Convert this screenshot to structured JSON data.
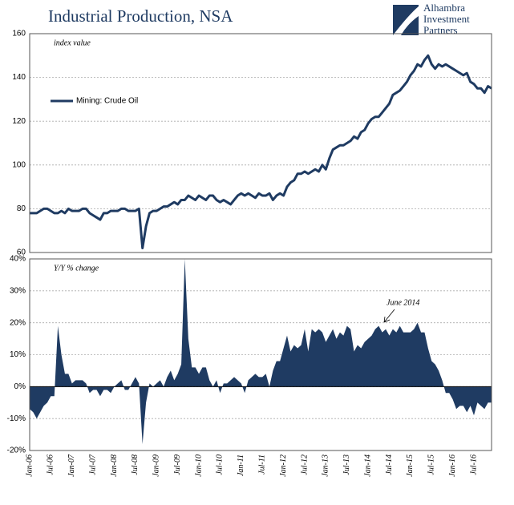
{
  "title": "Industrial Production, NSA",
  "logo": [
    "Alhambra",
    "Investment",
    "Partners"
  ],
  "chart_data": [
    {
      "type": "line",
      "axis_label": "index value",
      "ylim": [
        60,
        160
      ],
      "yticks": [
        60,
        80,
        100,
        120,
        140,
        160
      ],
      "grid": true,
      "legend": "upper left",
      "series": [
        {
          "name": "Mining: Crude Oil",
          "color": "#1f3b62",
          "values": [
            78,
            78,
            78,
            79,
            80,
            80,
            79,
            78,
            78,
            79,
            78,
            80,
            79,
            79,
            79,
            80,
            80,
            78,
            77,
            76,
            75,
            78,
            78,
            79,
            79,
            79,
            80,
            80,
            79,
            79,
            79,
            80,
            62,
            72,
            78,
            79,
            79,
            80,
            81,
            81,
            82,
            83,
            82,
            84,
            84,
            86,
            85,
            84,
            86,
            85,
            84,
            86,
            86,
            84,
            83,
            84,
            83,
            82,
            84,
            86,
            87,
            86,
            87,
            86,
            85,
            87,
            86,
            86,
            87,
            84,
            86,
            87,
            86,
            90,
            92,
            93,
            96,
            96,
            97,
            96,
            97,
            98,
            97,
            100,
            98,
            103,
            107,
            108,
            109,
            109,
            110,
            111,
            113,
            112,
            115,
            116,
            119,
            121,
            122,
            122,
            124,
            126,
            128,
            132,
            133,
            134,
            136,
            138,
            141,
            143,
            146,
            145,
            148,
            150,
            146,
            144,
            146,
            145,
            146,
            145,
            144,
            143,
            142,
            141,
            142,
            138,
            137,
            135,
            135,
            133,
            136,
            135
          ]
        }
      ]
    },
    {
      "type": "area",
      "axis_label": "Y/Y % change",
      "ylim": [
        -20,
        40
      ],
      "yticks": [
        {
          "value": -20,
          "label": "-20%"
        },
        {
          "value": -10,
          "label": "-10%"
        },
        {
          "value": 0,
          "label": "0%"
        },
        {
          "value": 10,
          "label": "10%"
        },
        {
          "value": 20,
          "label": "20%"
        },
        {
          "value": 30,
          "label": "30%"
        },
        {
          "value": 40,
          "label": "40%"
        }
      ],
      "grid": true,
      "annotation": "June 2014",
      "categories": [
        "Jan-06",
        null,
        null,
        null,
        null,
        null,
        "Jul-06",
        null,
        null,
        null,
        null,
        null,
        "Jan-07",
        null,
        null,
        null,
        null,
        null,
        "Jul-07",
        null,
        null,
        null,
        null,
        null,
        "Jan-08",
        null,
        null,
        null,
        null,
        null,
        "Jul-08",
        null,
        null,
        null,
        null,
        null,
        "Jan-09",
        null,
        null,
        null,
        null,
        null,
        "Jul-09",
        null,
        null,
        null,
        null,
        null,
        "Jan-10",
        null,
        null,
        null,
        null,
        null,
        "Jul-10",
        null,
        null,
        null,
        null,
        null,
        "Jan-11",
        null,
        null,
        null,
        null,
        null,
        "Jul-11",
        null,
        null,
        null,
        null,
        null,
        "Jan-12",
        null,
        null,
        null,
        null,
        null,
        "Jul-12",
        null,
        null,
        null,
        null,
        null,
        "Jan-13",
        null,
        null,
        null,
        null,
        null,
        "Jul-13",
        null,
        null,
        null,
        null,
        null,
        "Jan-14",
        null,
        null,
        null,
        null,
        null,
        "Jul-14",
        null,
        null,
        null,
        null,
        null,
        "Jan-15",
        null,
        null,
        null,
        null,
        null,
        "Jul-15",
        null,
        null,
        null,
        null,
        null,
        "Jan-16",
        null,
        null,
        null,
        null,
        null,
        "Jul-16",
        null,
        null,
        null,
        null,
        null
      ],
      "series": [
        {
          "color": "#1f3b62",
          "values": [
            -7,
            -8,
            -10,
            -8,
            -6,
            -5,
            -3,
            -3,
            19,
            10,
            4,
            4,
            1,
            2,
            2,
            2,
            1,
            -2,
            -1,
            -1,
            -3,
            -1,
            -1,
            -2,
            0,
            1,
            2,
            -1,
            -1,
            1,
            3,
            1,
            -18,
            -5,
            1,
            0,
            1,
            2,
            0,
            3,
            5,
            2,
            4,
            7,
            40,
            15,
            6,
            6,
            4,
            6,
            6,
            2,
            0,
            2,
            -2,
            1,
            1,
            2,
            3,
            2,
            1,
            -2,
            2,
            3,
            4,
            3,
            3,
            4,
            0,
            5,
            8,
            8,
            12,
            16,
            11,
            13,
            12,
            13,
            18,
            11,
            18,
            17,
            18,
            17,
            14,
            16,
            18,
            15,
            17,
            16,
            19,
            18,
            11,
            13,
            12,
            14,
            15,
            16,
            18,
            19,
            17,
            18,
            16,
            18,
            17,
            19,
            17,
            17,
            17,
            18,
            20,
            17,
            17,
            12,
            8,
            7,
            5,
            2,
            -2,
            -2,
            -4,
            -7,
            -6,
            -6,
            -8,
            -6,
            -9,
            -5,
            -6,
            -7,
            -5,
            -5
          ]
        }
      ]
    }
  ]
}
